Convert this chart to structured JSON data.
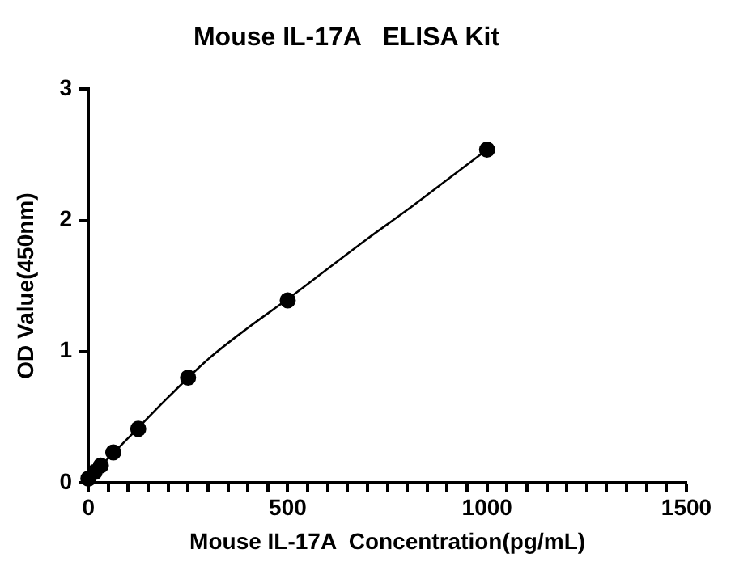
{
  "chart_data": {
    "type": "scatter",
    "title": "Mouse IL-17A   ELISA Kit",
    "xlabel": "Mouse IL-17A  Concentration(pg/mL)",
    "ylabel": "OD Value(450nm)",
    "x": [
      0,
      15.6,
      31.25,
      62.5,
      125,
      250,
      500,
      1000
    ],
    "series": [
      {
        "type": "scatter",
        "color": "#000000",
        "marker": "circle",
        "values": [
          0.03,
          0.08,
          0.13,
          0.23,
          0.41,
          0.8,
          1.39,
          2.54
        ]
      },
      {
        "type": "line",
        "color": "#000000",
        "marker": "none",
        "x": [
          0,
          100,
          200,
          300,
          400,
          500,
          600,
          700,
          800,
          900,
          1000
        ],
        "values": [
          0.03,
          0.34,
          0.65,
          0.94,
          1.18,
          1.4,
          1.63,
          1.86,
          2.08,
          2.31,
          2.54
        ]
      }
    ],
    "xlim": [
      0,
      1500
    ],
    "ylim": [
      0,
      3
    ],
    "xticks": [
      0,
      {
        "value": 50,
        "label": null
      },
      {
        "value": 100,
        "label": null
      },
      {
        "value": 150,
        "label": null
      },
      {
        "value": 200,
        "label": null
      },
      {
        "value": 250,
        "label": null
      },
      {
        "value": 300,
        "label": null
      },
      {
        "value": 350,
        "label": null
      },
      {
        "value": 400,
        "label": null
      },
      {
        "value": 450,
        "label": null
      },
      500,
      {
        "value": 550,
        "label": null
      },
      {
        "value": 600,
        "label": null
      },
      {
        "value": 650,
        "label": null
      },
      {
        "value": 700,
        "label": null
      },
      {
        "value": 750,
        "label": null
      },
      {
        "value": 800,
        "label": null
      },
      {
        "value": 850,
        "label": null
      },
      {
        "value": 900,
        "label": null
      },
      {
        "value": 950,
        "label": null
      },
      1000,
      {
        "value": 1050,
        "label": null
      },
      {
        "value": 1100,
        "label": null
      },
      {
        "value": 1150,
        "label": null
      },
      {
        "value": 1200,
        "label": null
      },
      {
        "value": 1250,
        "label": null
      },
      {
        "value": 1300,
        "label": null
      },
      {
        "value": 1350,
        "label": null
      },
      {
        "value": 1400,
        "label": null
      },
      {
        "value": 1450,
        "label": null
      },
      1500
    ],
    "yticks": [
      0,
      1,
      2,
      3
    ],
    "grid": false,
    "legend": false
  }
}
